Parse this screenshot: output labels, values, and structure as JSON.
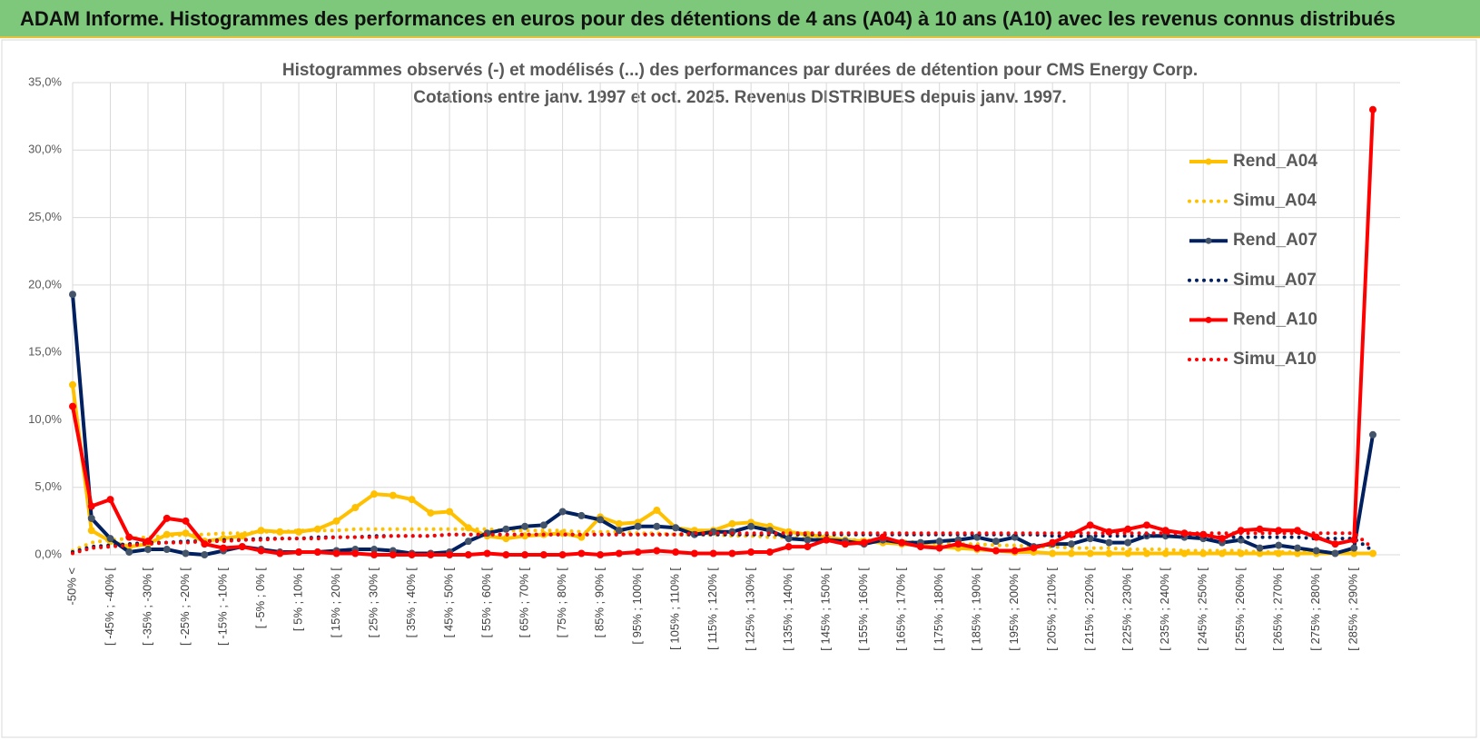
{
  "header": {
    "title": "ADAM Informe. Histogrammes des performances en euros pour des détentions de 4 ans (A04) à 10 ans (A10) avec les revenus connus distribués"
  },
  "chart_data": {
    "type": "line",
    "title": "Histogrammes observés (-) et modélisés (...) des performances par durées de détention pour CMS Energy Corp.",
    "subtitle": "Cotations entre janv. 1997 et oct. 2025.  Revenus DISTRIBUES depuis janv. 1997.",
    "categories": [
      "-50% <",
      null,
      "[ -45% ; -40% [",
      null,
      "[ -35% ; -30% [",
      null,
      "[ -25% ; -20% [",
      null,
      "[ -15% ; -10% [",
      null,
      "[ -5% ; 0% [",
      null,
      "[ 5% ; 10% [",
      null,
      "[ 15% ; 20% [",
      null,
      "[ 25% ; 30% [",
      null,
      "[ 35% ; 40% [",
      null,
      "[ 45% ; 50% [",
      null,
      "[ 55% ; 60% [",
      null,
      "[ 65% ; 70% [",
      null,
      "[ 75% ; 80% [",
      null,
      "[ 85% ; 90% [",
      null,
      "[ 95% ; 100% [",
      null,
      "[ 105% ; 110% [",
      null,
      "[ 115% ; 120% [",
      null,
      "[ 125% ; 130% [",
      null,
      "[ 135% ; 140% [",
      null,
      "[ 145% ; 150% [",
      null,
      "[ 155% ; 160% [",
      null,
      "[ 165% ; 170% [",
      null,
      "[ 175% ; 180% [",
      null,
      "[ 185% ; 190% [",
      null,
      "[ 195% ; 200% [",
      null,
      "[ 205% ; 210% [",
      null,
      "[ 215% ; 220% [",
      null,
      "[ 225% ; 230% [",
      null,
      "[ 235% ; 240% [",
      null,
      "[ 245% ; 250% [",
      null,
      "[ 255% ; 260% [",
      null,
      "[ 265% ; 270% [",
      null,
      "[ 275% ; 280% [",
      null,
      "[ 285% ; 290% [",
      null
    ],
    "series": [
      {
        "name": "Rend_A04",
        "color": "#ffc000",
        "style": "solid",
        "marker": true,
        "marker_color": "#ffc000",
        "values": [
          12.6,
          1.8,
          1.0,
          0.6,
          0.8,
          1.5,
          1.6,
          1.0,
          1.2,
          1.4,
          1.8,
          1.7,
          1.7,
          1.9,
          2.5,
          3.5,
          4.5,
          4.4,
          4.1,
          3.1,
          3.2,
          2.0,
          1.4,
          1.2,
          1.4,
          1.5,
          1.6,
          1.3,
          2.8,
          2.3,
          2.4,
          3.3,
          2.0,
          1.8,
          1.8,
          2.3,
          2.4,
          2.1,
          1.7,
          1.5,
          1.3,
          1.1,
          1.0,
          0.9,
          0.8,
          0.7,
          0.6,
          0.5,
          0.4,
          0.3,
          0.2,
          0.2,
          0.1,
          0.1,
          0.1,
          0.1,
          0.1,
          0.1,
          0.1,
          0.1,
          0.1,
          0.1,
          0.1,
          0.1,
          0.1,
          0.1,
          0.1,
          0.1,
          0.1,
          0.1
        ]
      },
      {
        "name": "Simu_A04",
        "color": "#ffc000",
        "style": "dotted",
        "marker": false,
        "values": [
          0.3,
          0.9,
          1.1,
          1.2,
          1.3,
          1.4,
          1.5,
          1.5,
          1.6,
          1.6,
          1.7,
          1.7,
          1.8,
          1.8,
          1.8,
          1.9,
          1.9,
          1.9,
          1.9,
          1.9,
          1.9,
          1.9,
          1.9,
          1.8,
          1.8,
          1.8,
          1.8,
          1.7,
          1.7,
          1.7,
          1.6,
          1.6,
          1.5,
          1.5,
          1.5,
          1.4,
          1.4,
          1.3,
          1.3,
          1.2,
          1.2,
          1.1,
          1.1,
          1.0,
          1.0,
          0.9,
          0.9,
          0.8,
          0.8,
          0.7,
          0.7,
          0.6,
          0.6,
          0.5,
          0.5,
          0.5,
          0.4,
          0.4,
          0.4,
          0.3,
          0.3,
          0.3,
          0.3,
          0.2,
          0.2,
          0.2,
          0.2,
          0.2,
          0.1,
          0.1
        ]
      },
      {
        "name": "Rend_A07",
        "color": "#002060",
        "style": "solid",
        "marker": true,
        "marker_color": "#44546a",
        "values": [
          19.3,
          2.7,
          1.2,
          0.2,
          0.4,
          0.4,
          0.1,
          0.0,
          0.3,
          0.6,
          0.4,
          0.2,
          0.2,
          0.2,
          0.3,
          0.4,
          0.4,
          0.3,
          0.1,
          0.1,
          0.2,
          1.0,
          1.6,
          1.9,
          2.1,
          2.2,
          3.2,
          2.9,
          2.6,
          1.8,
          2.1,
          2.1,
          2.0,
          1.5,
          1.7,
          1.7,
          2.1,
          1.8,
          1.2,
          1.1,
          1.1,
          1.0,
          0.8,
          1.1,
          0.9,
          0.9,
          1.0,
          1.1,
          1.3,
          1.0,
          1.3,
          0.6,
          0.8,
          0.8,
          1.2,
          0.9,
          0.9,
          1.4,
          1.4,
          1.3,
          1.2,
          0.9,
          1.1,
          0.5,
          0.7,
          0.5,
          0.3,
          0.1,
          0.5,
          8.9
        ]
      },
      {
        "name": "Simu_A07",
        "color": "#002060",
        "style": "dotted",
        "marker": false,
        "values": [
          0.2,
          0.6,
          0.7,
          0.8,
          0.9,
          0.9,
          1.0,
          1.0,
          1.1,
          1.1,
          1.2,
          1.2,
          1.2,
          1.3,
          1.3,
          1.3,
          1.4,
          1.4,
          1.4,
          1.4,
          1.5,
          1.5,
          1.5,
          1.5,
          1.5,
          1.5,
          1.5,
          1.5,
          1.5,
          1.5,
          1.5,
          1.5,
          1.5,
          1.5,
          1.5,
          1.5,
          1.5,
          1.5,
          1.5,
          1.5,
          1.5,
          1.5,
          1.5,
          1.5,
          1.5,
          1.5,
          1.5,
          1.5,
          1.5,
          1.5,
          1.5,
          1.5,
          1.4,
          1.4,
          1.4,
          1.4,
          1.4,
          1.4,
          1.4,
          1.4,
          1.3,
          1.3,
          1.3,
          1.3,
          1.3,
          1.3,
          1.2,
          1.2,
          1.2,
          0.3
        ]
      },
      {
        "name": "Rend_A10",
        "color": "#ff0000",
        "style": "solid",
        "marker": true,
        "marker_color": "#ff0000",
        "values": [
          11.0,
          3.6,
          4.1,
          1.3,
          1.0,
          2.7,
          2.5,
          0.8,
          0.5,
          0.6,
          0.3,
          0.1,
          0.2,
          0.2,
          0.1,
          0.1,
          0.0,
          0.0,
          0.0,
          0.0,
          0.0,
          0.0,
          0.1,
          0.0,
          0.0,
          0.0,
          0.0,
          0.1,
          0.0,
          0.1,
          0.2,
          0.3,
          0.2,
          0.1,
          0.1,
          0.1,
          0.2,
          0.2,
          0.6,
          0.6,
          1.1,
          0.8,
          0.9,
          1.3,
          0.9,
          0.6,
          0.5,
          0.8,
          0.5,
          0.3,
          0.3,
          0.5,
          0.9,
          1.5,
          2.2,
          1.7,
          1.9,
          2.2,
          1.8,
          1.6,
          1.5,
          1.2,
          1.8,
          1.9,
          1.8,
          1.8,
          1.3,
          0.8,
          1.1,
          33.0
        ]
      },
      {
        "name": "Simu_A10",
        "color": "#ff0000",
        "style": "dotted",
        "marker": false,
        "values": [
          0.1,
          0.5,
          0.6,
          0.7,
          0.8,
          0.9,
          0.9,
          1.0,
          1.0,
          1.1,
          1.1,
          1.2,
          1.2,
          1.2,
          1.3,
          1.3,
          1.3,
          1.4,
          1.4,
          1.4,
          1.5,
          1.5,
          1.5,
          1.5,
          1.5,
          1.5,
          1.5,
          1.5,
          1.5,
          1.5,
          1.5,
          1.5,
          1.5,
          1.6,
          1.6,
          1.6,
          1.6,
          1.6,
          1.6,
          1.6,
          1.6,
          1.6,
          1.6,
          1.6,
          1.6,
          1.6,
          1.6,
          1.6,
          1.6,
          1.6,
          1.6,
          1.6,
          1.6,
          1.6,
          1.6,
          1.6,
          1.6,
          1.6,
          1.6,
          1.6,
          1.6,
          1.6,
          1.6,
          1.6,
          1.6,
          1.6,
          1.6,
          1.6,
          1.6,
          0.5
        ]
      }
    ],
    "ylim": [
      0,
      35
    ],
    "yticks": [
      {
        "value": 0,
        "label": "0,0%"
      },
      {
        "value": 5,
        "label": "5,0%"
      },
      {
        "value": 10,
        "label": "10,0%"
      },
      {
        "value": 15,
        "label": "15,0%"
      },
      {
        "value": 20,
        "label": "20,0%"
      },
      {
        "value": 25,
        "label": "25,0%"
      },
      {
        "value": 30,
        "label": "30,0%"
      },
      {
        "value": 35,
        "label": "35,0%"
      }
    ],
    "grid": true,
    "legend": "right"
  }
}
